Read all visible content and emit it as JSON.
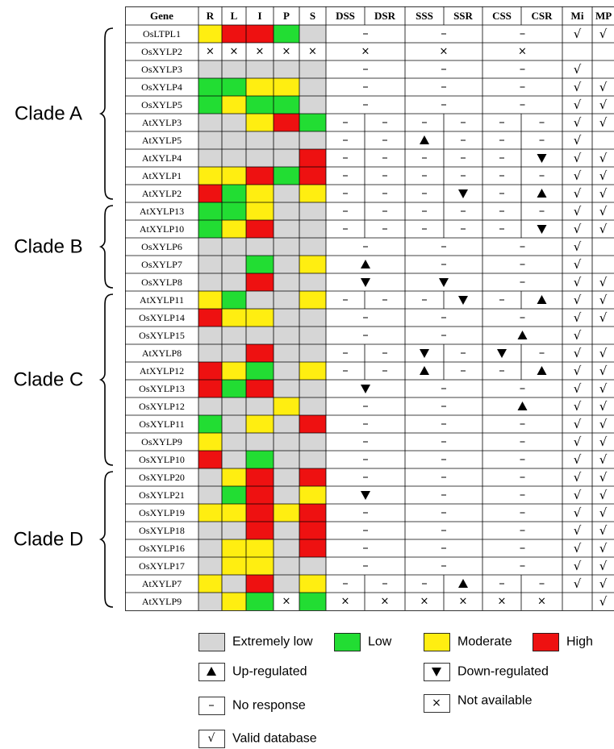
{
  "chart_data": {
    "type": "table",
    "colors": {
      "E": "#d6d6d6",
      "L": "#22dd33",
      "M": "#ffee11",
      "H": "#ee1111",
      "X": "#ffffff"
    },
    "columns": [
      "Gene",
      "R",
      "L",
      "I",
      "P",
      "S",
      "DSS",
      "DSR",
      "SSS",
      "SSR",
      "CSS",
      "CSR",
      "Mi",
      "MP"
    ],
    "groups": [
      {
        "name": "Clade A",
        "start": 0,
        "end": 9
      },
      {
        "name": "Clade B",
        "start": 10,
        "end": 14
      },
      {
        "name": "Clade C",
        "start": 15,
        "end": 24
      },
      {
        "name": "Clade D",
        "start": 25,
        "end": 32
      }
    ],
    "rows": [
      {
        "gene": "OsLTPL1",
        "tissue": [
          "M",
          "H",
          "H",
          "L",
          "E"
        ],
        "merged": true,
        "stress": [
          "–",
          "–",
          "–"
        ],
        "mi": "√",
        "mp": "√"
      },
      {
        "gene": "OsXYLP2",
        "tissue": [
          "X",
          "X",
          "X",
          "X",
          "X"
        ],
        "merged": true,
        "stress": [
          "×",
          "×",
          "×"
        ],
        "mi": "",
        "mp": ""
      },
      {
        "gene": "OsXYLP3",
        "tissue": [
          "E",
          "E",
          "E",
          "E",
          "E"
        ],
        "merged": true,
        "stress": [
          "–",
          "–",
          "–"
        ],
        "mi": "√",
        "mp": ""
      },
      {
        "gene": "OsXYLP4",
        "tissue": [
          "L",
          "L",
          "M",
          "M",
          "E"
        ],
        "merged": true,
        "stress": [
          "–",
          "–",
          "–"
        ],
        "mi": "√",
        "mp": "√"
      },
      {
        "gene": "OsXYLP5",
        "tissue": [
          "L",
          "M",
          "L",
          "L",
          "E"
        ],
        "merged": true,
        "stress": [
          "–",
          "–",
          "–"
        ],
        "mi": "√",
        "mp": "√"
      },
      {
        "gene": "AtXYLP3",
        "tissue": [
          "E",
          "E",
          "M",
          "H",
          "L"
        ],
        "merged": false,
        "stress": [
          "–",
          "–",
          "–",
          "–",
          "–",
          "–"
        ],
        "mi": "√",
        "mp": "√"
      },
      {
        "gene": "AtXYLP5",
        "tissue": [
          "E",
          "E",
          "E",
          "E",
          "E"
        ],
        "merged": false,
        "stress": [
          "–",
          "–",
          "▲",
          "–",
          "–",
          "–"
        ],
        "mi": "√",
        "mp": ""
      },
      {
        "gene": "AtXYLP4",
        "tissue": [
          "E",
          "E",
          "E",
          "E",
          "H"
        ],
        "merged": false,
        "stress": [
          "–",
          "–",
          "–",
          "–",
          "–",
          "▼"
        ],
        "mi": "√",
        "mp": "√"
      },
      {
        "gene": "AtXYLP1",
        "tissue": [
          "M",
          "M",
          "H",
          "L",
          "H"
        ],
        "merged": false,
        "stress": [
          "–",
          "–",
          "–",
          "–",
          "–",
          "–"
        ],
        "mi": "√",
        "mp": "√"
      },
      {
        "gene": "AtXYLP2",
        "tissue": [
          "H",
          "L",
          "M",
          "E",
          "M"
        ],
        "merged": false,
        "stress": [
          "–",
          "–",
          "–",
          "▼",
          "–",
          "▲"
        ],
        "mi": "√",
        "mp": "√"
      },
      {
        "gene": "AtXYLP13",
        "tissue": [
          "L",
          "L",
          "M",
          "E",
          "E"
        ],
        "merged": false,
        "stress": [
          "–",
          "–",
          "–",
          "–",
          "–",
          "–"
        ],
        "mi": "√",
        "mp": "√"
      },
      {
        "gene": "AtXYLP10",
        "tissue": [
          "L",
          "M",
          "H",
          "E",
          "E"
        ],
        "merged": false,
        "stress": [
          "–",
          "–",
          "–",
          "–",
          "–",
          "▼"
        ],
        "mi": "√",
        "mp": "√"
      },
      {
        "gene": "OsXYLP6",
        "tissue": [
          "E",
          "E",
          "E",
          "E",
          "E"
        ],
        "merged": true,
        "stress": [
          "–",
          "–",
          "–"
        ],
        "mi": "√",
        "mp": ""
      },
      {
        "gene": "OsXYLP7",
        "tissue": [
          "E",
          "E",
          "L",
          "E",
          "M"
        ],
        "merged": true,
        "stress": [
          "▲",
          "–",
          "–"
        ],
        "mi": "√",
        "mp": ""
      },
      {
        "gene": "OsXYLP8",
        "tissue": [
          "E",
          "E",
          "H",
          "E",
          "E"
        ],
        "merged": true,
        "stress": [
          "▼",
          "▼",
          "–"
        ],
        "mi": "√",
        "mp": "√"
      },
      {
        "gene": "AtXYLP11",
        "tissue": [
          "M",
          "L",
          "E",
          "E",
          "M"
        ],
        "merged": false,
        "stress": [
          "–",
          "–",
          "–",
          "▼",
          "–",
          "▲"
        ],
        "mi": "√",
        "mp": "√"
      },
      {
        "gene": "OsXYLP14",
        "tissue": [
          "H",
          "M",
          "M",
          "E",
          "E"
        ],
        "merged": true,
        "stress": [
          "–",
          "–",
          "–"
        ],
        "mi": "√",
        "mp": "√"
      },
      {
        "gene": "OsXYLP15",
        "tissue": [
          "E",
          "E",
          "E",
          "E",
          "E"
        ],
        "merged": true,
        "stress": [
          "–",
          "–",
          "▲"
        ],
        "mi": "√",
        "mp": ""
      },
      {
        "gene": "AtXYLP8",
        "tissue": [
          "E",
          "E",
          "H",
          "E",
          "E"
        ],
        "merged": false,
        "stress": [
          "–",
          "–",
          "▼",
          "–",
          "▼",
          "–"
        ],
        "mi": "√",
        "mp": "√"
      },
      {
        "gene": "AtXYLP12",
        "tissue": [
          "H",
          "M",
          "L",
          "E",
          "M"
        ],
        "merged": false,
        "stress": [
          "–",
          "–",
          "▲",
          "–",
          "–",
          "▲"
        ],
        "mi": "√",
        "mp": "√"
      },
      {
        "gene": "OsXYLP13",
        "tissue": [
          "H",
          "L",
          "H",
          "E",
          "E"
        ],
        "merged": true,
        "stress": [
          "▼",
          "–",
          "–"
        ],
        "mi": "√",
        "mp": "√"
      },
      {
        "gene": "OsXYLP12",
        "tissue": [
          "E",
          "E",
          "E",
          "M",
          "E"
        ],
        "merged": true,
        "stress": [
          "–",
          "–",
          "▲"
        ],
        "mi": "√",
        "mp": "√"
      },
      {
        "gene": "OsXYLP11",
        "tissue": [
          "L",
          "E",
          "M",
          "E",
          "H"
        ],
        "merged": true,
        "stress": [
          "–",
          "–",
          "–"
        ],
        "mi": "√",
        "mp": "√"
      },
      {
        "gene": "OsXYLP9",
        "tissue": [
          "M",
          "E",
          "E",
          "E",
          "E"
        ],
        "merged": true,
        "stress": [
          "–",
          "–",
          "–"
        ],
        "mi": "√",
        "mp": "√"
      },
      {
        "gene": "OsXYLP10",
        "tissue": [
          "H",
          "E",
          "L",
          "E",
          "E"
        ],
        "merged": true,
        "stress": [
          "–",
          "–",
          "–"
        ],
        "mi": "√",
        "mp": "√"
      },
      {
        "gene": "OsXYLP20",
        "tissue": [
          "E",
          "M",
          "H",
          "E",
          "H"
        ],
        "merged": true,
        "stress": [
          "–",
          "–",
          "–"
        ],
        "mi": "√",
        "mp": "√"
      },
      {
        "gene": "OsXYLP21",
        "tissue": [
          "E",
          "L",
          "H",
          "E",
          "M"
        ],
        "merged": true,
        "stress": [
          "▼",
          "–",
          "–"
        ],
        "mi": "√",
        "mp": "√"
      },
      {
        "gene": "OsXYLP19",
        "tissue": [
          "M",
          "M",
          "H",
          "M",
          "H"
        ],
        "merged": true,
        "stress": [
          "–",
          "–",
          "–"
        ],
        "mi": "√",
        "mp": "√"
      },
      {
        "gene": "OsXYLP18",
        "tissue": [
          "E",
          "E",
          "H",
          "E",
          "H"
        ],
        "merged": true,
        "stress": [
          "–",
          "–",
          "–"
        ],
        "mi": "√",
        "mp": "√"
      },
      {
        "gene": "OsXYLP16",
        "tissue": [
          "E",
          "M",
          "M",
          "E",
          "H"
        ],
        "merged": true,
        "stress": [
          "–",
          "–",
          "–"
        ],
        "mi": "√",
        "mp": "√"
      },
      {
        "gene": "OsXYLP17",
        "tissue": [
          "E",
          "M",
          "M",
          "E",
          "E"
        ],
        "merged": true,
        "stress": [
          "–",
          "–",
          "–"
        ],
        "mi": "√",
        "mp": "√"
      },
      {
        "gene": "AtXYLP7",
        "tissue": [
          "M",
          "E",
          "H",
          "E",
          "M"
        ],
        "merged": false,
        "stress": [
          "–",
          "–",
          "–",
          "▲",
          "–",
          "–"
        ],
        "mi": "√",
        "mp": "√"
      },
      {
        "gene": "AtXYLP9",
        "tissue": [
          "E",
          "M",
          "L",
          "×",
          "L"
        ],
        "merged": false,
        "stress": [
          "×",
          "×",
          "×",
          "×",
          "×",
          "×"
        ],
        "mi": "",
        "mp": "√"
      }
    ],
    "legend": [
      {
        "kind": "swatch",
        "color": "E",
        "label": "Extremely low"
      },
      {
        "kind": "swatch",
        "color": "L",
        "label": "Low"
      },
      {
        "kind": "swatch",
        "color": "M",
        "label": "Moderate"
      },
      {
        "kind": "swatch",
        "color": "H",
        "label": "High"
      },
      {
        "kind": "symbol",
        "symbol": "▲",
        "label": "Up-regulated"
      },
      {
        "kind": "symbol",
        "symbol": "▼",
        "label": "Down-regulated"
      },
      {
        "kind": "symbol",
        "symbol": "–",
        "label": "No response"
      },
      {
        "kind": "symbol",
        "symbol": "×",
        "label": "Not available"
      },
      {
        "kind": "symbol",
        "symbol": "√",
        "label": "Valid database"
      }
    ]
  }
}
